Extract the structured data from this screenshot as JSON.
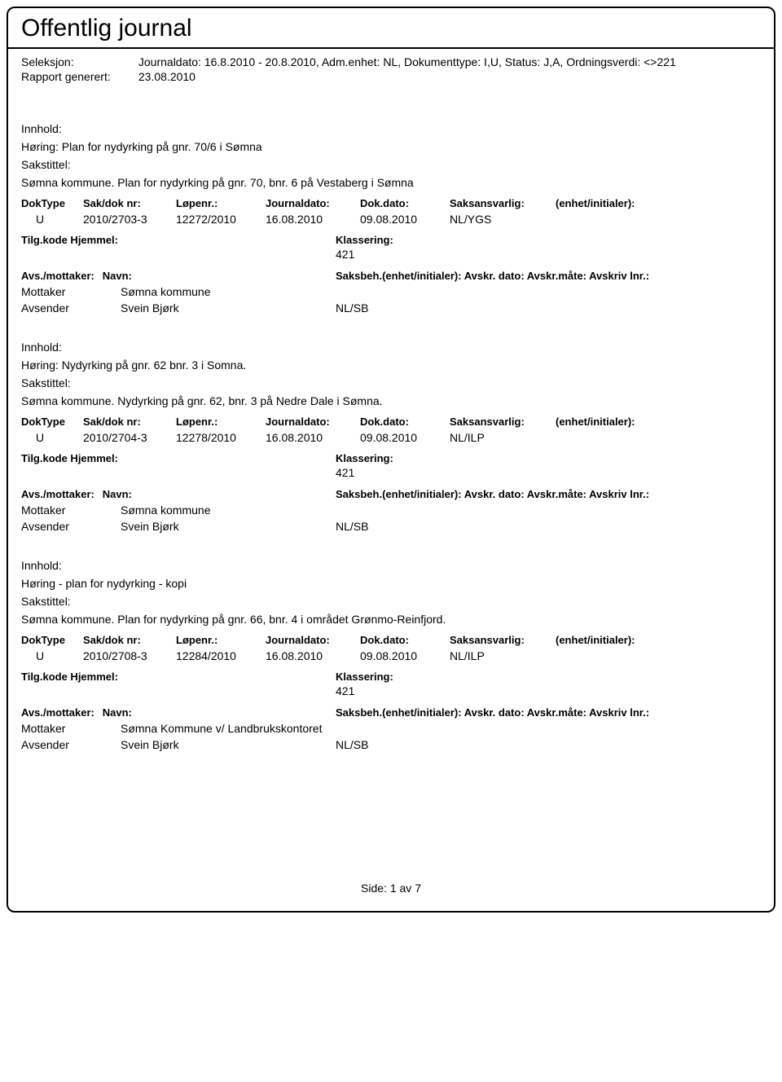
{
  "title": "Offentlig journal",
  "meta": {
    "seleksjonLabel": "Seleksjon:",
    "seleksjonValue": "Journaldato: 16.8.2010 - 20.8.2010, Adm.enhet: NL, Dokumenttype: I,U, Status: J,A, Ordningsverdi: <>221",
    "rapportLabel": "Rapport generert:",
    "rapportValue": "23.08.2010"
  },
  "labels": {
    "inhold": "Innhold:",
    "sakstittel": "Sakstittel:",
    "doktype": "DokType",
    "sakdok": "Sak/dok nr:",
    "lopenr": "Løpenr.:",
    "journaldato": "Journaldato:",
    "dokdato": "Dok.dato:",
    "saksansvarlig": "Saksansvarlig:",
    "enhetinit": "(enhet/initialer):",
    "tilgkode": "Tilg.kode",
    "hjemmel": "Hjemmel:",
    "klassering": "Klassering:",
    "avsmottaker": "Avs./mottaker:",
    "navn": "Navn:",
    "saksbeh": "Saksbeh.(enhet/initialer): Avskr. dato: Avskr.måte: Avskriv lnr.:",
    "mottaker": "Mottaker",
    "avsender": "Avsender"
  },
  "entries": [
    {
      "inhold": "Høring: Plan for nydyrking på gnr. 70/6 i Sømna",
      "sakstittel": "Sømna kommune. Plan for nydyrking på gnr. 70, bnr. 6  på Vestaberg i Sømna",
      "doktype": "U",
      "sakdok": "2010/2703-3",
      "lopenr": "12272/2010",
      "journaldato": "16.08.2010",
      "dokdato": "09.08.2010",
      "saksansvarlig": "NL/YGS",
      "klassering": "421",
      "parties": [
        {
          "role": "Mottaker",
          "name": "Sømna kommune",
          "code": ""
        },
        {
          "role": "Avsender",
          "name": "Svein Bjørk",
          "code": "NL/SB"
        }
      ]
    },
    {
      "inhold": "Høring: Nydyrking på gnr. 62 bnr. 3 i Somna.",
      "sakstittel": "Sømna kommune. Nydyrking på gnr. 62, bnr. 3 på Nedre Dale i Sømna.",
      "doktype": "U",
      "sakdok": "2010/2704-3",
      "lopenr": "12278/2010",
      "journaldato": "16.08.2010",
      "dokdato": "09.08.2010",
      "saksansvarlig": "NL/ILP",
      "klassering": "421",
      "parties": [
        {
          "role": "Mottaker",
          "name": "Sømna kommune",
          "code": ""
        },
        {
          "role": "Avsender",
          "name": "Svein Bjørk",
          "code": "NL/SB"
        }
      ]
    },
    {
      "inhold": "Høring - plan for nydyrking - kopi",
      "sakstittel": "Sømna kommune. Plan for nydyrking på gnr. 66, bnr. 4 i området Grønmo-Reinfjord.",
      "doktype": "U",
      "sakdok": "2010/2708-3",
      "lopenr": "12284/2010",
      "journaldato": "16.08.2010",
      "dokdato": "09.08.2010",
      "saksansvarlig": "NL/ILP",
      "klassering": "421",
      "parties": [
        {
          "role": "Mottaker",
          "name": "Sømna Kommune v/ Landbrukskontoret",
          "code": ""
        },
        {
          "role": "Avsender",
          "name": "Svein Bjørk",
          "code": "NL/SB"
        }
      ]
    }
  ],
  "footer": {
    "sideLabel": "Side:",
    "page": "1",
    "av": "av",
    "total": "7"
  }
}
